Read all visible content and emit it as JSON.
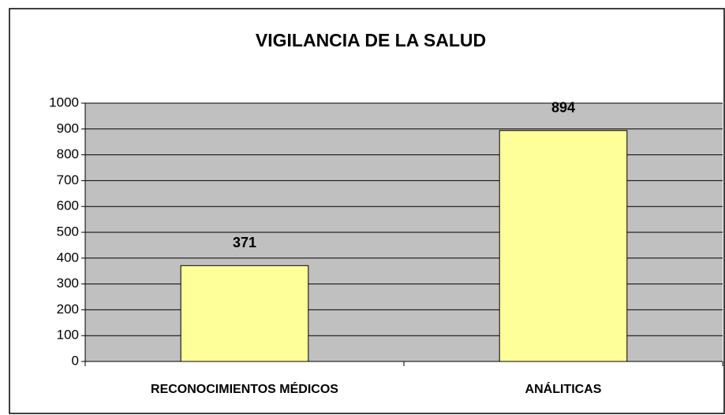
{
  "chart_data": {
    "type": "bar",
    "title": "VIGILANCIA DE LA SALUD",
    "categories": [
      "RECONOCIMIENTOS MÉDICOS",
      "ANÁLITICAS"
    ],
    "values": [
      371,
      894
    ],
    "color": "#ffff99",
    "ylim": [
      0,
      1000
    ],
    "yticks": [
      0,
      100,
      200,
      300,
      400,
      500,
      600,
      700,
      800,
      900,
      1000
    ],
    "grid": true
  }
}
